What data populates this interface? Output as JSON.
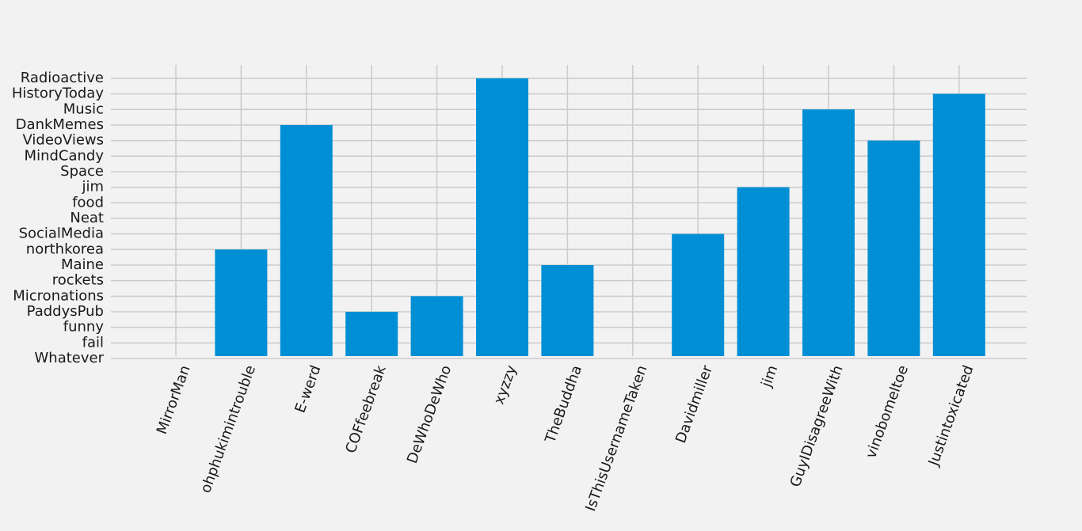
{
  "chart_data": {
    "type": "bar",
    "categories": [
      "MirrorMan",
      "ohphukimintrouble",
      "E-werd",
      "COFfeebreak",
      "DeWhoDeWho",
      "xyzzy",
      "TheBuddha",
      "IsThisUsernameTaken",
      "Davidmiller",
      "jim",
      "GuyIDisagreeWith",
      "vinobomeltoe",
      "Justintoxicated"
    ],
    "y_categories": [
      "Whatever",
      "fail",
      "funny",
      "PaddysPub",
      "Micronations",
      "rockets",
      "Maine",
      "northkorea",
      "SocialMedia",
      "Neat",
      "food",
      "jim",
      "Space",
      "MindCandy",
      "VideoViews",
      "DankMemes",
      "Music",
      "HistoryToday",
      "Radioactive"
    ],
    "values": [
      "Whatever",
      "northkorea",
      "DankMemes",
      "PaddysPub",
      "Micronations",
      "Radioactive",
      "Maine",
      "Whatever",
      "SocialMedia",
      "jim",
      "Music",
      "VideoViews",
      "HistoryToday"
    ],
    "title": "",
    "xlabel": "",
    "ylabel": "",
    "grid": true,
    "bar_color": "#008fd5",
    "background_color": "#f2f2f2",
    "grid_color": "#cbcbcb"
  }
}
